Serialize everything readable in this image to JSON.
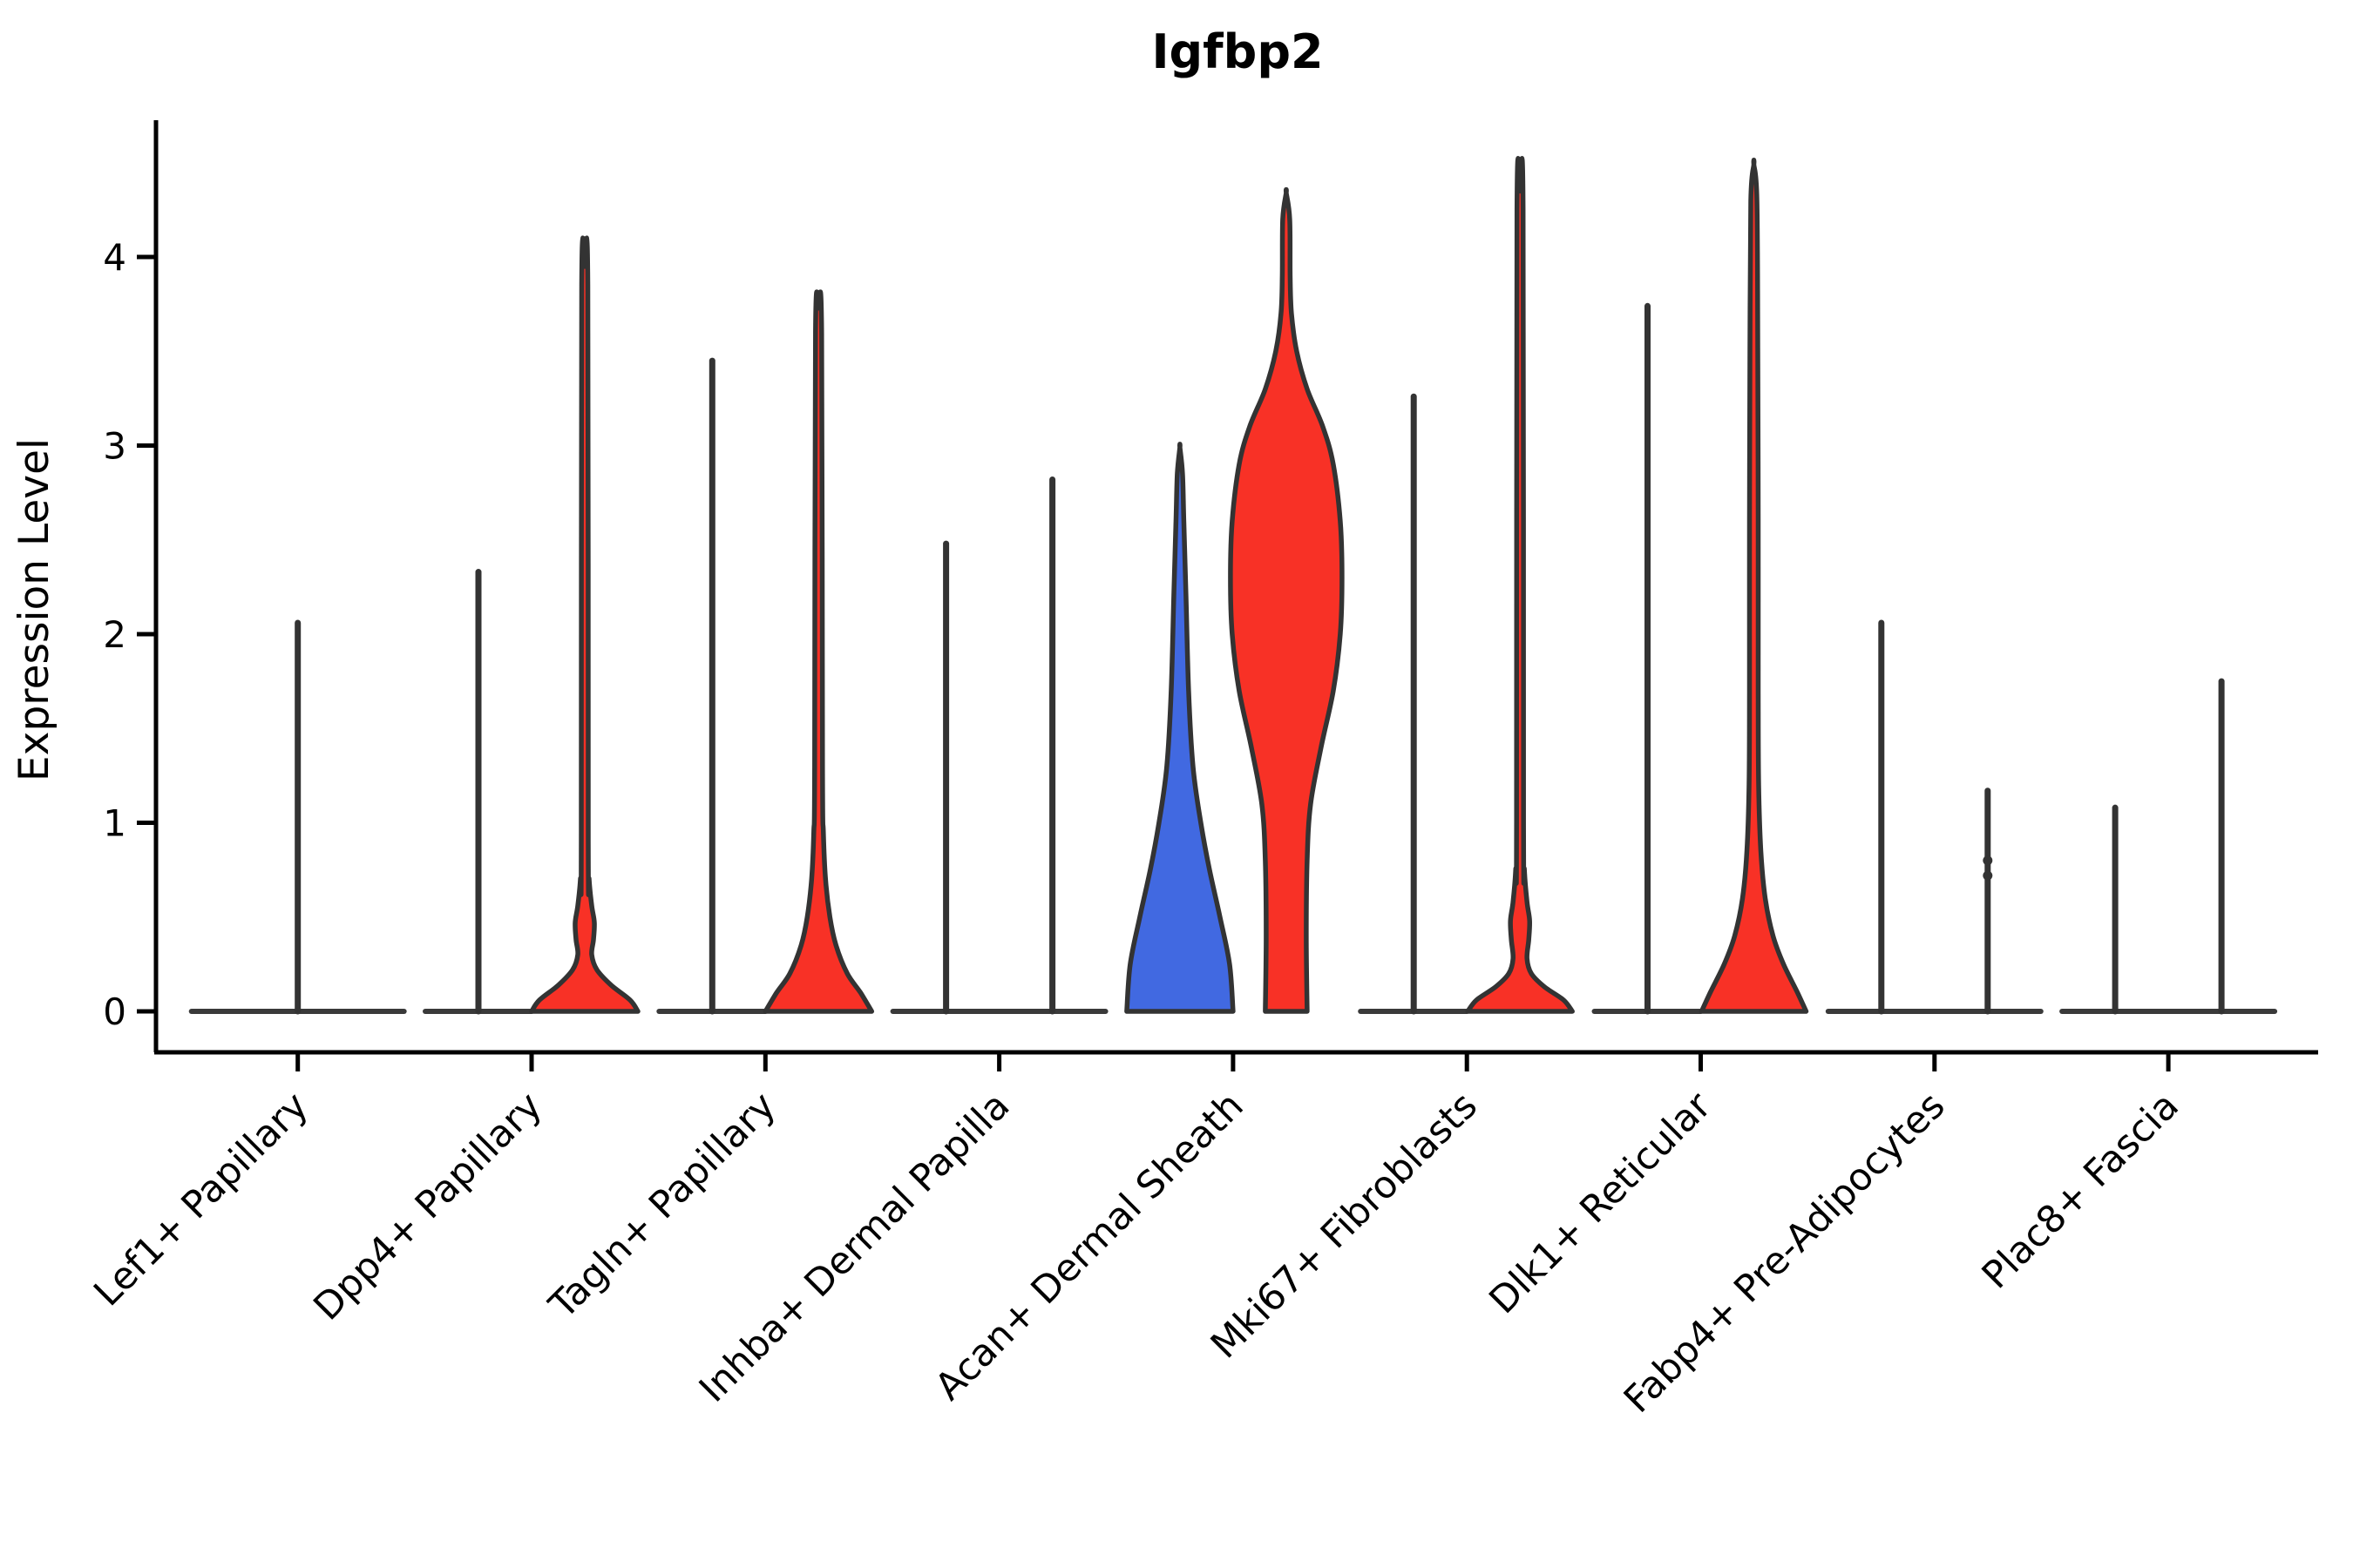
{
  "title": "Igfbp2",
  "y_axis": {
    "label": "Expression Level",
    "tick_labels": [
      "0",
      "1",
      "2",
      "3",
      "4"
    ]
  },
  "colors": {
    "red": "#f83126",
    "blue": "#4169e1",
    "outline": "#333333",
    "baseline": "#3a3a3a",
    "axis": "#000000"
  },
  "categories": [
    "Lef1+ Papillary",
    "Dpp4+ Papillary",
    "Tagln+ Papillary",
    "Inhba+ Dermal Papilla",
    "Acan+ Dermal Sheath",
    "Mki67+ Fibroblasts",
    "Dlk1+ Reticular",
    "Fabp4+ Pre-Adipocytes",
    "Plac8+ Fascia"
  ],
  "chart_data": {
    "type": "violin",
    "title": "Igfbp2",
    "ylabel": "Expression Level",
    "ylim": [
      0,
      4.73
    ],
    "yticks": [
      0,
      1,
      2,
      3,
      4
    ],
    "grid": false,
    "legend": "none",
    "split": "two dodged violins per category (left group rendered blue, right group rendered red); violins with almost all zero values collapse to a flat zero-line plus a thin spike up to the group's maximum expression",
    "categories": [
      "Lef1+ Papillary",
      "Dpp4+ Papillary",
      "Tagln+ Papillary",
      "Inhba+ Dermal Papilla",
      "Acan+ Dermal Sheath",
      "Mki67+ Fibroblasts",
      "Dlk1+ Reticular",
      "Fabp4+ Pre-Adipocytes",
      "Plac8+ Fascia"
    ],
    "violins": [
      {
        "category": "Lef1+ Papillary",
        "position": "single",
        "color": "none",
        "style": "collapsed",
        "max_expression": 2.06
      },
      {
        "category": "Dpp4+ Papillary",
        "position": "left",
        "color": "blue",
        "style": "collapsed",
        "max_expression": 2.33
      },
      {
        "category": "Dpp4+ Papillary",
        "position": "right",
        "color": "red",
        "style": "filled",
        "max_expression": 3.95,
        "width_profile": [
          [
            0,
            61
          ],
          [
            0.06,
            52
          ],
          [
            0.14,
            30
          ],
          [
            0.22,
            14
          ],
          [
            0.3,
            8
          ],
          [
            0.38,
            10
          ],
          [
            0.47,
            11
          ],
          [
            0.56,
            8
          ],
          [
            0.7,
            5
          ],
          [
            0.9,
            4
          ],
          [
            3.85,
            3.5
          ],
          [
            3.95,
            0
          ]
        ]
      },
      {
        "category": "Tagln+ Papillary",
        "position": "left",
        "color": "blue",
        "style": "collapsed",
        "max_expression": 3.45
      },
      {
        "category": "Tagln+ Papillary",
        "position": "right",
        "color": "red",
        "style": "filled",
        "max_expression": 3.73,
        "width_profile": [
          [
            0,
            61
          ],
          [
            0.1,
            48
          ],
          [
            0.2,
            33
          ],
          [
            0.35,
            20
          ],
          [
            0.5,
            13
          ],
          [
            0.7,
            8
          ],
          [
            0.95,
            5.5
          ],
          [
            1.3,
            4.5
          ],
          [
            3.6,
            3.5
          ],
          [
            3.73,
            0
          ]
        ]
      },
      {
        "category": "Inhba+ Dermal Papilla",
        "position": "left",
        "color": "blue",
        "style": "collapsed",
        "max_expression": 2.48
      },
      {
        "category": "Inhba+ Dermal Papilla",
        "position": "right",
        "color": "red",
        "style": "collapsed",
        "max_expression": 2.82
      },
      {
        "category": "Acan+ Dermal Sheath",
        "position": "left",
        "color": "blue",
        "style": "filled",
        "max_expression": 2.99,
        "width_profile": [
          [
            0,
            61
          ],
          [
            0.25,
            57
          ],
          [
            0.5,
            46
          ],
          [
            0.75,
            34
          ],
          [
            1.0,
            24
          ],
          [
            1.3,
            15
          ],
          [
            1.7,
            10
          ],
          [
            2.2,
            7
          ],
          [
            2.6,
            4.5
          ],
          [
            2.85,
            3
          ],
          [
            2.99,
            0
          ]
        ]
      },
      {
        "category": "Acan+ Dermal Sheath",
        "position": "right",
        "color": "red",
        "style": "filled",
        "max_expression": 4.34,
        "flat_base": true,
        "width_profile": [
          [
            0,
            24
          ],
          [
            0.4,
            23
          ],
          [
            0.8,
            24
          ],
          [
            1.1,
            28
          ],
          [
            1.4,
            40
          ],
          [
            1.7,
            54
          ],
          [
            2.0,
            62
          ],
          [
            2.3,
            64
          ],
          [
            2.6,
            62
          ],
          [
            2.9,
            54
          ],
          [
            3.1,
            42
          ],
          [
            3.3,
            24
          ],
          [
            3.5,
            12
          ],
          [
            3.7,
            6
          ],
          [
            3.9,
            4.5
          ],
          [
            4.2,
            4
          ],
          [
            4.34,
            0
          ]
        ]
      },
      {
        "category": "Mki67+ Fibroblasts",
        "position": "left",
        "color": "blue",
        "style": "collapsed",
        "max_expression": 3.26
      },
      {
        "category": "Mki67+ Fibroblasts",
        "position": "right",
        "color": "red",
        "style": "filled",
        "max_expression": 4.35,
        "width_profile": [
          [
            0,
            60
          ],
          [
            0.06,
            50
          ],
          [
            0.13,
            28
          ],
          [
            0.2,
            13
          ],
          [
            0.28,
            8
          ],
          [
            0.38,
            10
          ],
          [
            0.48,
            11
          ],
          [
            0.58,
            8
          ],
          [
            0.75,
            5
          ],
          [
            1.0,
            4
          ],
          [
            4.25,
            3.5
          ],
          [
            4.35,
            0
          ]
        ]
      },
      {
        "category": "Dlk1+ Reticular",
        "position": "left",
        "color": "blue",
        "style": "collapsed",
        "max_expression": 3.74
      },
      {
        "category": "Dlk1+ Reticular",
        "position": "right",
        "color": "red",
        "style": "filled",
        "max_expression": 4.49,
        "width_profile": [
          [
            0,
            60
          ],
          [
            0.1,
            50
          ],
          [
            0.25,
            34
          ],
          [
            0.4,
            22
          ],
          [
            0.6,
            13
          ],
          [
            0.85,
            8
          ],
          [
            1.2,
            5.5
          ],
          [
            1.7,
            5
          ],
          [
            2.6,
            5
          ],
          [
            3.5,
            4.5
          ],
          [
            4.3,
            3.5
          ],
          [
            4.49,
            0
          ]
        ]
      },
      {
        "category": "Fabp4+ Pre-Adipocytes",
        "position": "left",
        "color": "blue",
        "style": "collapsed",
        "max_expression": 2.06
      },
      {
        "category": "Fabp4+ Pre-Adipocytes",
        "position": "right",
        "color": "red",
        "style": "collapsed",
        "max_expression": 1.17,
        "outlier_points": [
          0.72,
          0.8
        ]
      },
      {
        "category": "Plac8+ Fascia",
        "position": "left",
        "color": "blue",
        "style": "collapsed",
        "max_expression": 1.08
      },
      {
        "category": "Plac8+ Fascia",
        "position": "right",
        "color": "red",
        "style": "collapsed",
        "max_expression": 1.75
      }
    ]
  }
}
